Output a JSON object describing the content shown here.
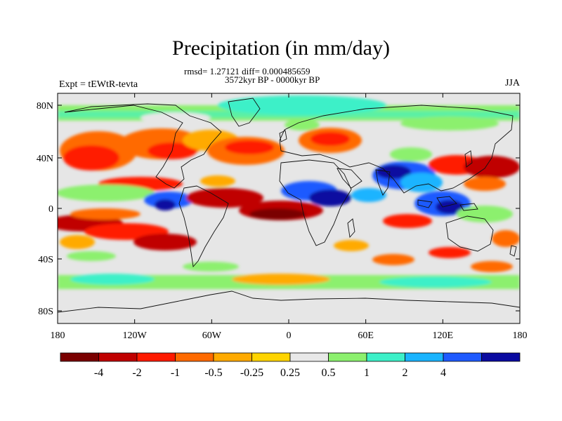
{
  "figure": {
    "title": "Precipitation (in mm/day)",
    "stats_line": "rmsd= 1.27121 diff= 0.000485659",
    "period_line": "3572kyr BP - 0000kyr BP",
    "experiment": "Expt = tEWtR-tevta",
    "season": "JJA"
  },
  "axes": {
    "x_ticks": [
      "180",
      "120W",
      "60W",
      "0",
      "60E",
      "120E",
      "180"
    ],
    "y_ticks": [
      "80N",
      "40N",
      "0",
      "40S",
      "80S"
    ]
  },
  "colorbar": {
    "colors": [
      "#7a0000",
      "#c00000",
      "#ff1a00",
      "#ff6a00",
      "#ffaa00",
      "#ffd400",
      "#e8e8e8",
      "#8cf06e",
      "#3cf0c8",
      "#1ab4ff",
      "#1f5aff",
      "#0a0aa0"
    ],
    "labels": [
      "-4",
      "-2",
      "-1",
      "-0.5",
      "-0.25",
      "0.25",
      "0.5",
      "1",
      "2",
      "4"
    ]
  },
  "colors": {
    "neutral": "#e6e6e6"
  }
}
